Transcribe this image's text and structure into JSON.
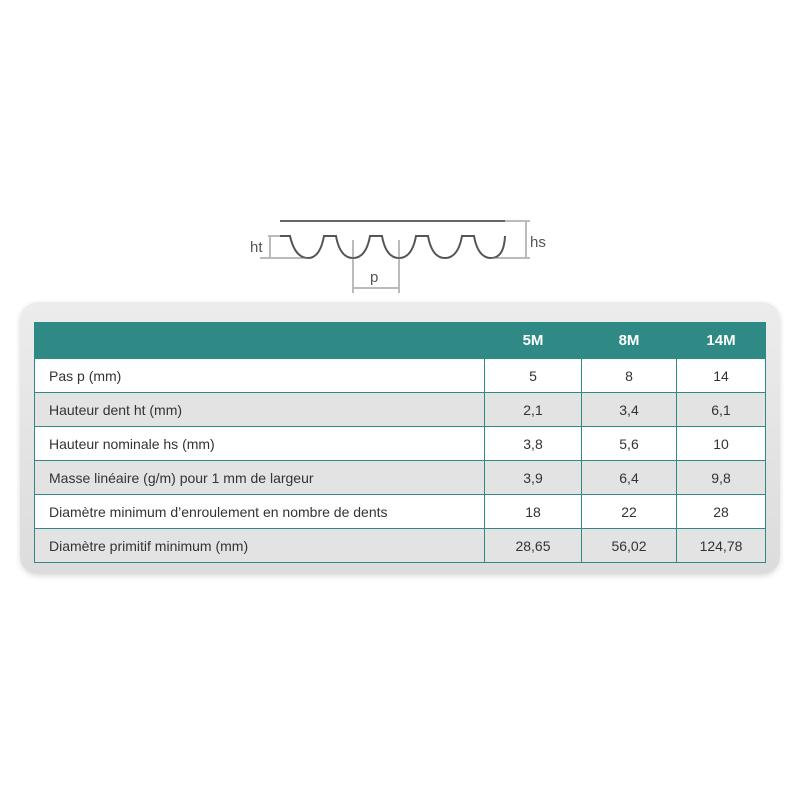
{
  "diagram": {
    "labels": {
      "ht": "ht",
      "hs": "hs",
      "p": "p"
    }
  },
  "table": {
    "columns": [
      "",
      "5M",
      "8M",
      "14M"
    ],
    "rows": [
      {
        "label": "Pas p (mm)",
        "values": [
          "5",
          "8",
          "14"
        ]
      },
      {
        "label": "Hauteur dent ht (mm)",
        "values": [
          "2,1",
          "3,4",
          "6,1"
        ]
      },
      {
        "label": "Hauteur nominale hs (mm)",
        "values": [
          "3,8",
          "5,6",
          "10"
        ]
      },
      {
        "label": "Masse linéaire (g/m) pour 1 mm de largeur",
        "values": [
          "3,9",
          "6,4",
          "9,8"
        ]
      },
      {
        "label": "Diamètre minimum d’enroulement en nombre de dents",
        "values": [
          "18",
          "22",
          "28"
        ]
      },
      {
        "label": "Diamètre primitif minimum (mm)",
        "values": [
          "28,65",
          "56,02",
          "124,78"
        ]
      }
    ]
  },
  "colors": {
    "header": "#2f8a85",
    "alt_row": "#e3e3e3"
  }
}
